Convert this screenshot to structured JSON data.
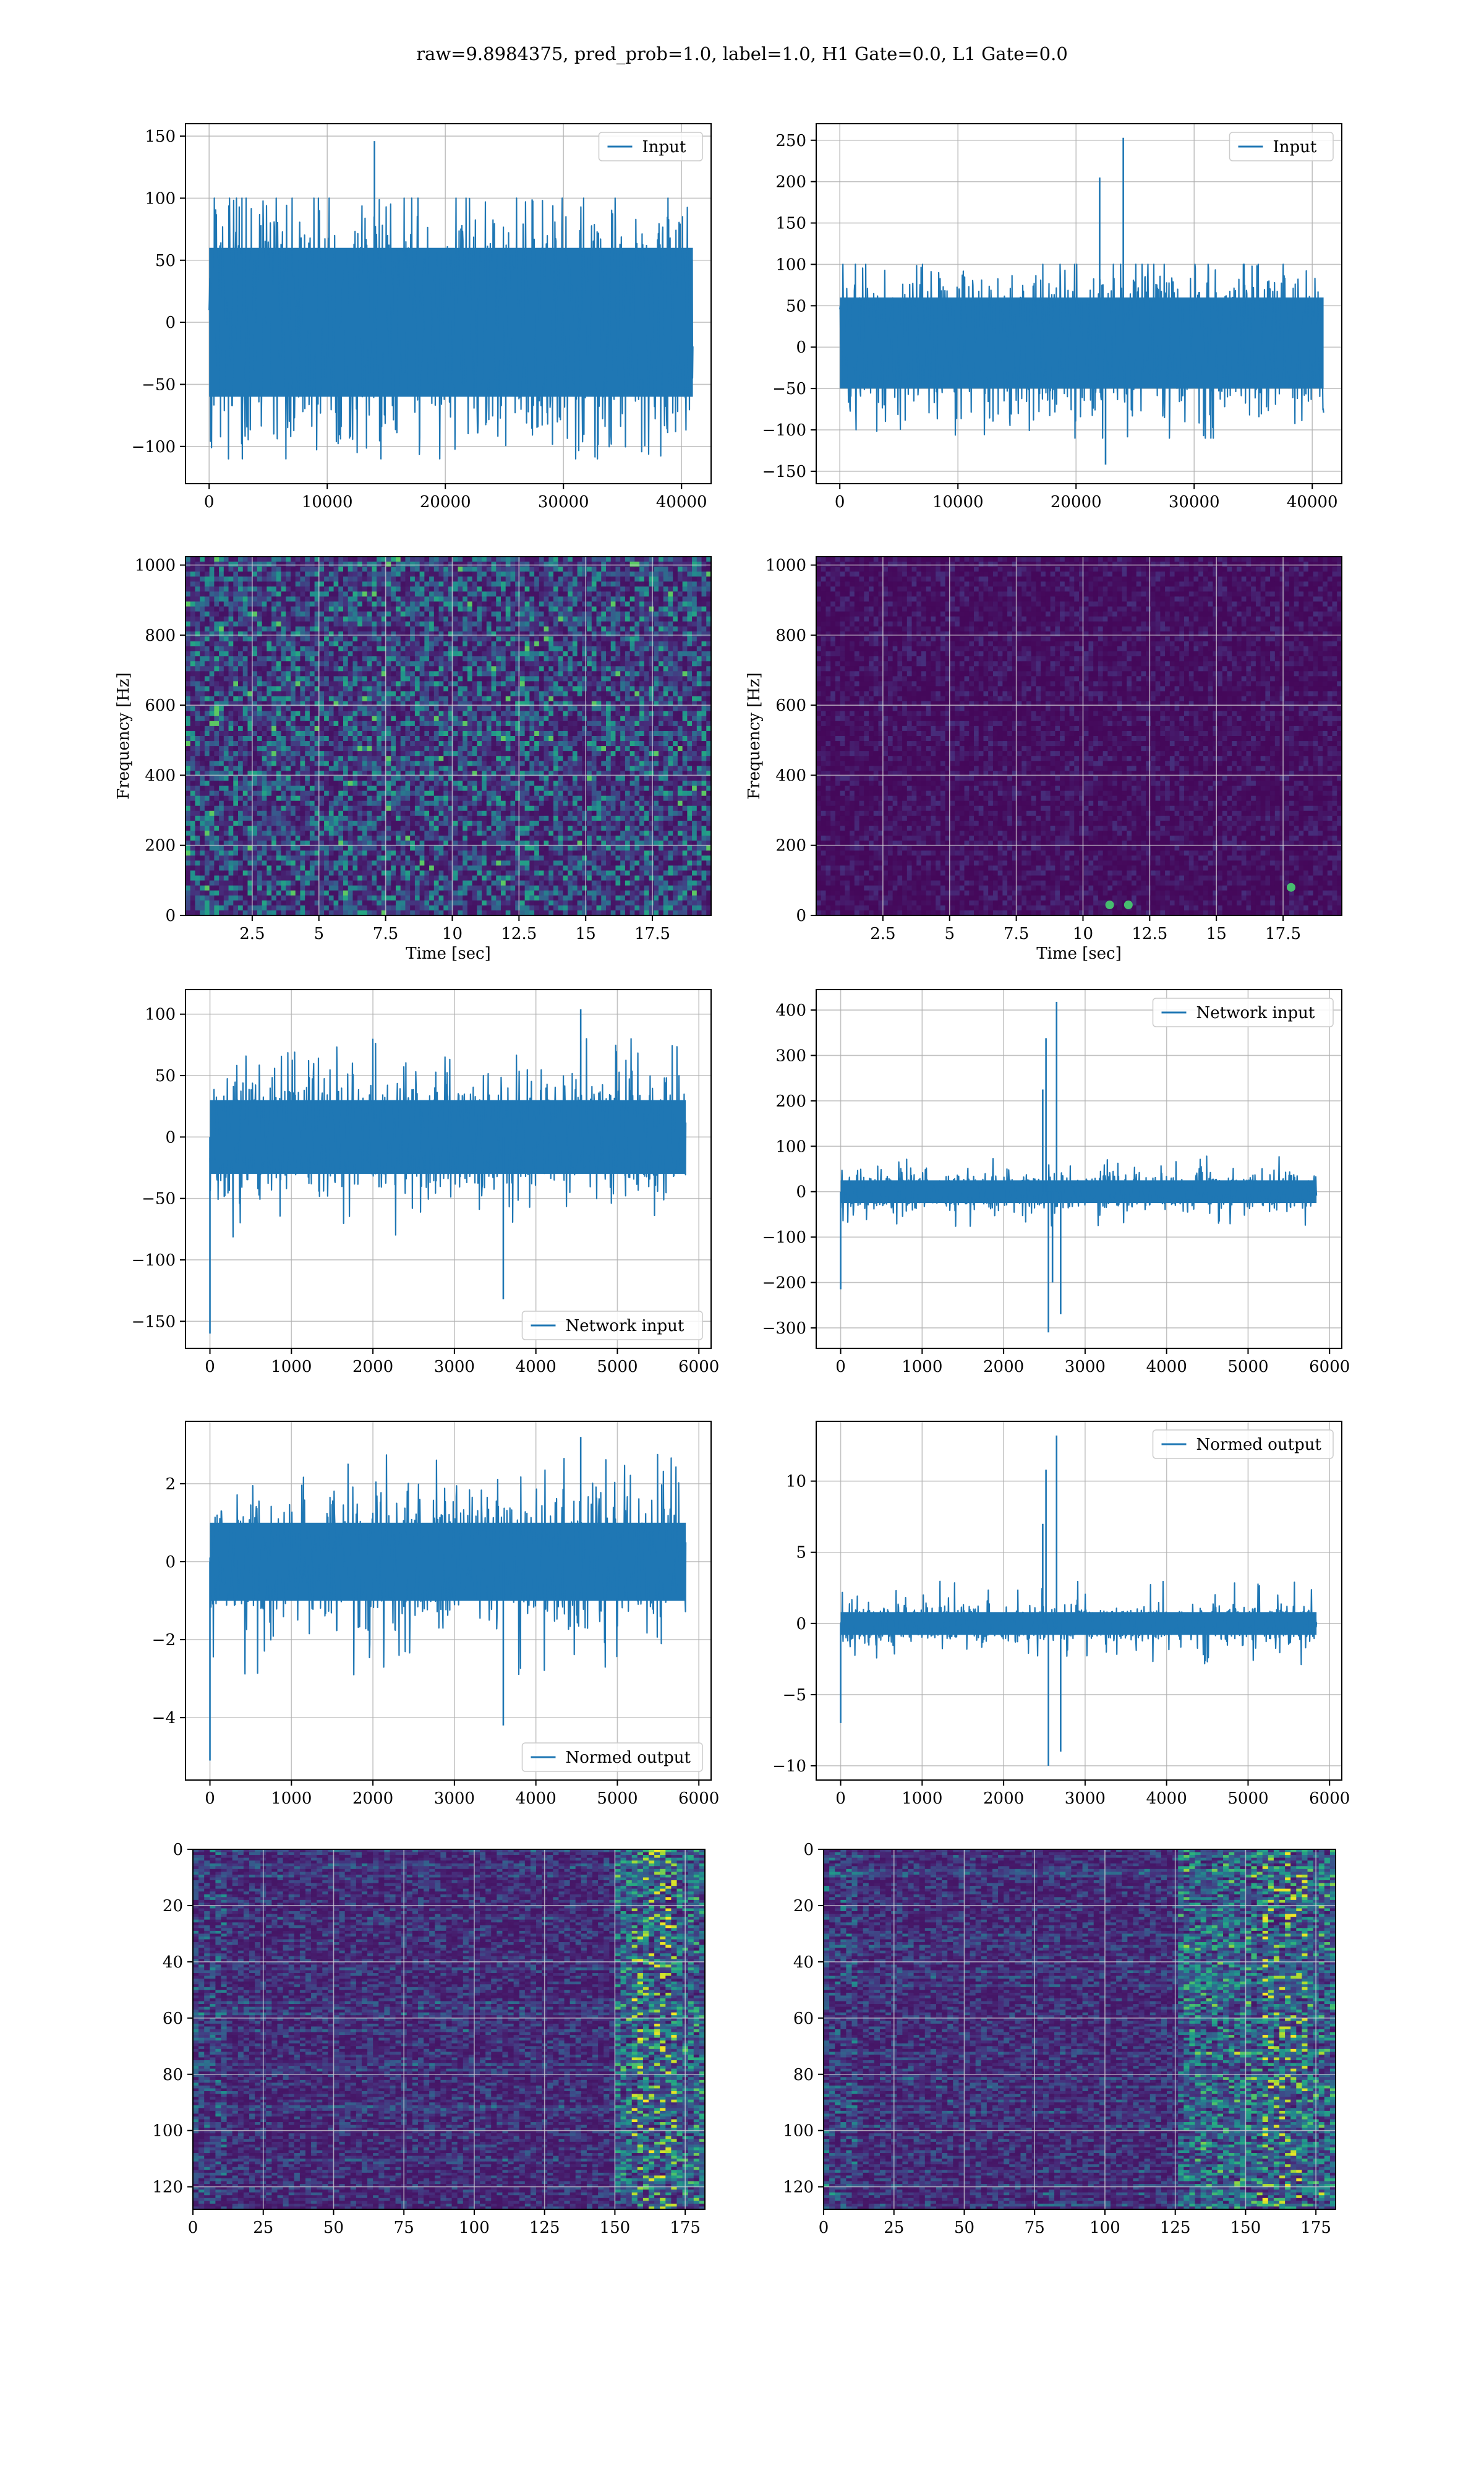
{
  "figure": {
    "suptitle": "raw=9.8984375, pred_prob=1.0, label=1.0, H1 Gate=0.0, L1 Gate=0.0",
    "colors": {
      "line": "#1f77b4",
      "grid": "#b0b0b0",
      "viridis_low": "#440154",
      "viridis_mid": "#21908d",
      "viridis_high": "#fde725"
    }
  },
  "chart_data": [
    {
      "id": "input-h1",
      "type": "line",
      "legend": [
        "Input"
      ],
      "legend_loc": "top-right",
      "xlim": [
        -2000,
        42500
      ],
      "ylim": [
        -130,
        160
      ],
      "xticks": [
        0,
        10000,
        20000,
        30000,
        40000
      ],
      "yticks": [
        -100,
        -50,
        0,
        50,
        100,
        150
      ],
      "xlabel": "",
      "ylabel": "",
      "series": [
        {
          "x_range": [
            0,
            40960
          ],
          "band": [
            -60,
            60
          ],
          "peaks_hi": 100,
          "peaks_lo": -110,
          "spikes": [
            {
              "x": 14000,
              "y": 146
            }
          ]
        }
      ]
    },
    {
      "id": "input-l1",
      "type": "line",
      "legend": [
        "Input"
      ],
      "legend_loc": "top-right",
      "xlim": [
        -2000,
        42500
      ],
      "ylim": [
        -165,
        270
      ],
      "xticks": [
        0,
        10000,
        20000,
        30000,
        40000
      ],
      "yticks": [
        -150,
        -100,
        -50,
        0,
        50,
        100,
        150,
        200,
        250
      ],
      "xlabel": "",
      "ylabel": "",
      "series": [
        {
          "x_range": [
            0,
            40960
          ],
          "band": [
            -50,
            60
          ],
          "peaks_hi": 100,
          "peaks_lo": -110,
          "spikes": [
            {
              "x": 22000,
              "y": 205
            },
            {
              "x": 24000,
              "y": 253
            },
            {
              "x": 22500,
              "y": -142
            }
          ]
        }
      ]
    },
    {
      "id": "spec-h1",
      "type": "heatmap",
      "xlim": [
        0,
        19.7
      ],
      "ylim": [
        0,
        1024
      ],
      "xticks": [
        2.5,
        5.0,
        7.5,
        10.0,
        12.5,
        15.0,
        17.5
      ],
      "yticks": [
        0,
        200,
        400,
        600,
        800,
        1000
      ],
      "xlabel": "Time [sec]",
      "ylabel": "Frequency [Hz]",
      "colormap": "viridis",
      "note": "uniform noise texture"
    },
    {
      "id": "spec-l1",
      "type": "heatmap",
      "xlim": [
        0,
        19.7
      ],
      "ylim": [
        0,
        1024
      ],
      "xticks": [
        2.5,
        5.0,
        7.5,
        10.0,
        12.5,
        15.0,
        17.5
      ],
      "yticks": [
        0,
        200,
        400,
        600,
        800,
        1000
      ],
      "xlabel": "Time [sec]",
      "ylabel": "Frequency [Hz]",
      "colormap": "viridis",
      "bright_spots": [
        {
          "t": 11.0,
          "f": 30
        },
        {
          "t": 11.7,
          "f": 30
        },
        {
          "t": 17.8,
          "f": 80
        }
      ]
    },
    {
      "id": "net-h1",
      "type": "line",
      "legend": [
        "Network input"
      ],
      "legend_loc": "bottom-right",
      "xlim": [
        -300,
        6150
      ],
      "ylim": [
        -172,
        120
      ],
      "xticks": [
        0,
        1000,
        2000,
        3000,
        4000,
        5000,
        6000
      ],
      "yticks": [
        -150,
        -100,
        -50,
        0,
        50,
        100
      ],
      "xlabel": "",
      "ylabel": "",
      "series": [
        {
          "x_range": [
            0,
            5840
          ],
          "band": [
            -30,
            30
          ],
          "peaks_hi": 80,
          "peaks_lo": -85,
          "spikes": [
            {
              "x": 0,
              "y": -160
            },
            {
              "x": 3600,
              "y": -132
            },
            {
              "x": 4550,
              "y": 104
            }
          ]
        }
      ]
    },
    {
      "id": "net-l1",
      "type": "line",
      "legend": [
        "Network input"
      ],
      "legend_loc": "top-right",
      "xlim": [
        -300,
        6150
      ],
      "ylim": [
        -345,
        445
      ],
      "xticks": [
        0,
        1000,
        2000,
        3000,
        4000,
        5000,
        6000
      ],
      "yticks": [
        -300,
        -200,
        -100,
        0,
        100,
        200,
        300,
        400
      ],
      "xlabel": "",
      "ylabel": "",
      "series": [
        {
          "x_range": [
            0,
            5840
          ],
          "band": [
            -25,
            25
          ],
          "peaks_hi": 80,
          "peaks_lo": -80,
          "spikes": [
            {
              "x": 0,
              "y": -215
            },
            {
              "x": 2480,
              "y": 225
            },
            {
              "x": 2520,
              "y": 338
            },
            {
              "x": 2550,
              "y": -310
            },
            {
              "x": 2600,
              "y": -200
            },
            {
              "x": 2650,
              "y": 418
            },
            {
              "x": 2700,
              "y": -270
            }
          ]
        }
      ]
    },
    {
      "id": "norm-h1",
      "type": "line",
      "legend": [
        "Normed output"
      ],
      "legend_loc": "bottom-right",
      "xlim": [
        -300,
        6150
      ],
      "ylim": [
        -5.6,
        3.6
      ],
      "xticks": [
        0,
        1000,
        2000,
        3000,
        4000,
        5000,
        6000
      ],
      "yticks": [
        -4,
        -2,
        0,
        2
      ],
      "xlabel": "",
      "ylabel": "",
      "series": [
        {
          "x_range": [
            0,
            5840
          ],
          "band": [
            -1.0,
            1.0
          ],
          "peaks_hi": 2.8,
          "peaks_lo": -2.9,
          "spikes": [
            {
              "x": 0,
              "y": -5.1
            },
            {
              "x": 3600,
              "y": -4.2
            },
            {
              "x": 4550,
              "y": 3.2
            }
          ]
        }
      ]
    },
    {
      "id": "norm-l1",
      "type": "line",
      "legend": [
        "Normed output"
      ],
      "legend_loc": "top-right",
      "xlim": [
        -300,
        6150
      ],
      "ylim": [
        -11,
        14.2
      ],
      "xticks": [
        0,
        1000,
        2000,
        3000,
        4000,
        5000,
        6000
      ],
      "yticks": [
        -10,
        -5,
        0,
        5,
        10
      ],
      "xlabel": "",
      "ylabel": "",
      "series": [
        {
          "x_range": [
            0,
            5840
          ],
          "band": [
            -0.8,
            0.8
          ],
          "peaks_hi": 3.0,
          "peaks_lo": -3.0,
          "spikes": [
            {
              "x": 0,
              "y": -7.0
            },
            {
              "x": 2480,
              "y": 7.0
            },
            {
              "x": 2520,
              "y": 10.8
            },
            {
              "x": 2550,
              "y": -10.0
            },
            {
              "x": 2650,
              "y": 13.2
            },
            {
              "x": 2700,
              "y": -9.0
            }
          ]
        }
      ]
    },
    {
      "id": "feat-h1",
      "type": "heatmap",
      "xlim": [
        0,
        182
      ],
      "ylim": [
        128,
        0
      ],
      "xticks": [
        0,
        25,
        50,
        75,
        100,
        125,
        150,
        175
      ],
      "yticks": [
        0,
        20,
        40,
        60,
        80,
        100,
        120
      ],
      "xlabel": "",
      "ylabel": "",
      "colormap": "viridis",
      "bright_columns": [
        150,
        182
      ]
    },
    {
      "id": "feat-l1",
      "type": "heatmap",
      "xlim": [
        0,
        182
      ],
      "ylim": [
        128,
        0
      ],
      "xticks": [
        0,
        25,
        50,
        75,
        100,
        125,
        150,
        175
      ],
      "yticks": [
        0,
        20,
        40,
        60,
        80,
        100,
        120
      ],
      "xlabel": "",
      "ylabel": "",
      "colormap": "viridis",
      "bright_columns": [
        125,
        182
      ]
    }
  ]
}
